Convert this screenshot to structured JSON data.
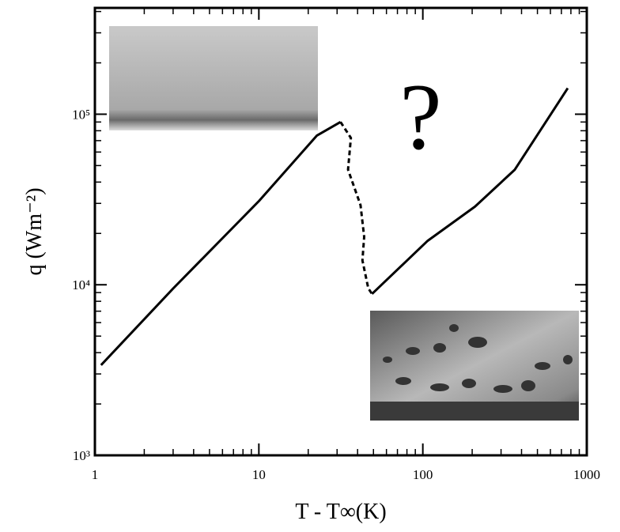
{
  "chart_data": {
    "type": "line",
    "xlabel": "T - T∞(K)",
    "ylabel": "q (Wm⁻²)",
    "annotation": "?",
    "xscale": "log",
    "yscale": "log",
    "minor_ticks": true,
    "xlim": [
      1,
      1000
    ],
    "ylim": [
      1000,
      420000
    ],
    "xticks": [
      1,
      10,
      100,
      1000
    ],
    "yticks": [
      {
        "value": 1000,
        "label": "10³"
      },
      {
        "value": 10000,
        "label": "10⁴"
      },
      {
        "value": 100000,
        "label": "10⁵"
      }
    ],
    "series": [
      {
        "color": "#000000",
        "dashed": false,
        "x": [
          1.09,
          3,
          10,
          22.6,
          31.5
        ],
        "values": [
          3380,
          9500,
          30900,
          75000,
          90000
        ]
      },
      {
        "color": "#000000",
        "dashed": true,
        "x": [
          31.5,
          36.4,
          35,
          41.7,
          43.9,
          42.8,
          46.5,
          49
        ],
        "values": [
          90000,
          72600,
          47300,
          29300,
          19100,
          13900,
          9530,
          8840
        ]
      },
      {
        "color": "#000000",
        "dashed": false,
        "x": [
          49,
          107,
          208,
          364,
          765
        ],
        "values": [
          8840,
          18100,
          28700,
          47300,
          142000
        ]
      }
    ]
  }
}
